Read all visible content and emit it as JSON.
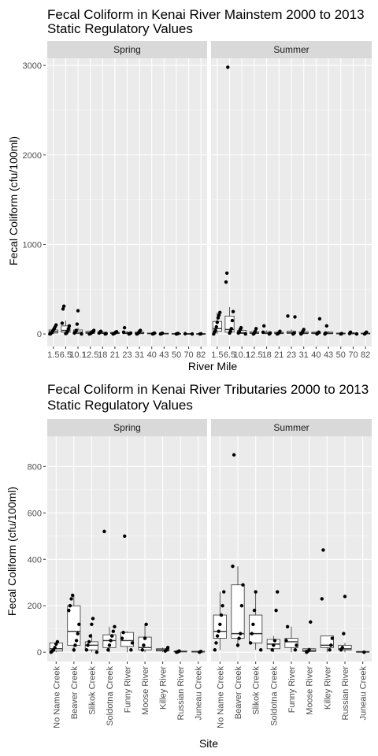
{
  "chart_data": [
    {
      "type": "box",
      "title_line1": "Fecal Coliform in Kenai River Mainstem  2000 to 2013",
      "title_line2": "Static Regulatory Values",
      "xlabel": "River Mile",
      "ylabel": "Fecal Coliform (cfu/100ml)",
      "ylim": [
        -140,
        3080
      ],
      "yticks": [
        0,
        1000,
        2000,
        3000
      ],
      "panels": [
        "Spring",
        "Summer"
      ],
      "categories": [
        "1.5",
        "6.5",
        "10.1",
        "12.5",
        "18",
        "21",
        "23",
        "31",
        "40",
        "43",
        "50",
        "70",
        "82"
      ],
      "tick_labels": [
        "1.5",
        "6.5",
        "10.1",
        "12.5",
        "18",
        "21",
        "23",
        "31",
        "40",
        "43",
        "50",
        "70",
        "82"
      ],
      "series": [
        {
          "name": "Spring",
          "boxes": [
            {
              "q1": 10,
              "median": 25,
              "q3": 45,
              "lo": 0,
              "hi": 80,
              "points": [
                0,
                5,
                15,
                30,
                45,
                60,
                80,
                100
              ]
            },
            {
              "q1": 20,
              "median": 40,
              "q3": 90,
              "lo": 0,
              "hi": 150,
              "points": [
                5,
                10,
                30,
                60,
                90,
                120,
                280,
                310
              ]
            },
            {
              "q1": 5,
              "median": 20,
              "q3": 45,
              "lo": 0,
              "hi": 70,
              "points": [
                0,
                10,
                20,
                40,
                110,
                260
              ]
            },
            {
              "q1": 5,
              "median": 15,
              "q3": 30,
              "lo": 0,
              "hi": 40,
              "points": [
                0,
                5,
                10,
                20,
                30,
                40
              ]
            },
            {
              "q1": 5,
              "median": 10,
              "q3": 20,
              "lo": 0,
              "hi": 30,
              "points": [
                0,
                5,
                10,
                20,
                30
              ]
            },
            {
              "q1": 3,
              "median": 8,
              "q3": 18,
              "lo": 0,
              "hi": 25,
              "points": [
                0,
                5,
                10,
                20,
                25
              ]
            },
            {
              "q1": 3,
              "median": 10,
              "q3": 20,
              "lo": 0,
              "hi": 30,
              "points": [
                0,
                5,
                10,
                20,
                70
              ]
            },
            {
              "q1": 3,
              "median": 10,
              "q3": 20,
              "lo": 0,
              "hi": 30,
              "points": [
                0,
                5,
                15,
                30,
                40
              ]
            },
            {
              "q1": 2,
              "median": 5,
              "q3": 10,
              "lo": 0,
              "hi": 15,
              "points": [
                0,
                5,
                10
              ]
            },
            {
              "q1": 2,
              "median": 4,
              "q3": 8,
              "lo": 0,
              "hi": 10,
              "points": [
                0,
                3,
                8
              ]
            },
            {
              "q1": 1,
              "median": 3,
              "q3": 6,
              "lo": 0,
              "hi": 8,
              "points": [
                0,
                3,
                6
              ]
            },
            {
              "q1": 1,
              "median": 3,
              "q3": 5,
              "lo": 0,
              "hi": 8,
              "points": [
                0,
                3
              ]
            },
            {
              "q1": 1,
              "median": 2,
              "q3": 4,
              "lo": 0,
              "hi": 6,
              "points": [
                0,
                2
              ]
            }
          ]
        },
        {
          "name": "Summer",
          "boxes": [
            {
              "q1": 30,
              "median": 60,
              "q3": 140,
              "lo": 0,
              "hi": 240,
              "points": [
                0,
                20,
                40,
                80,
                130,
                180,
                210,
                240
              ]
            },
            {
              "q1": 20,
              "median": 50,
              "q3": 200,
              "lo": 0,
              "hi": 300,
              "points": [
                10,
                30,
                60,
                150,
                250,
                580,
                680,
                2980
              ]
            },
            {
              "q1": 5,
              "median": 15,
              "q3": 40,
              "lo": 0,
              "hi": 60,
              "points": [
                0,
                10,
                20,
                50,
                70
              ]
            },
            {
              "q1": 5,
              "median": 10,
              "q3": 25,
              "lo": 0,
              "hi": 40,
              "points": [
                0,
                10,
                30,
                60
              ]
            },
            {
              "q1": 3,
              "median": 10,
              "q3": 25,
              "lo": 0,
              "hi": 40,
              "points": [
                0,
                10,
                20,
                90
              ]
            },
            {
              "q1": 3,
              "median": 8,
              "q3": 20,
              "lo": 0,
              "hi": 30,
              "points": [
                0,
                5,
                15,
                30
              ]
            },
            {
              "q1": 5,
              "median": 15,
              "q3": 30,
              "lo": 0,
              "hi": 50,
              "points": [
                0,
                10,
                190,
                200
              ]
            },
            {
              "q1": 3,
              "median": 10,
              "q3": 25,
              "lo": 0,
              "hi": 40,
              "points": [
                0,
                10,
                30,
                50
              ]
            },
            {
              "q1": 3,
              "median": 10,
              "q3": 20,
              "lo": 0,
              "hi": 30,
              "points": [
                0,
                10,
                20,
                170
              ]
            },
            {
              "q1": 2,
              "median": 8,
              "q3": 20,
              "lo": 0,
              "hi": 30,
              "points": [
                0,
                10,
                90
              ]
            },
            {
              "q1": 1,
              "median": 4,
              "q3": 10,
              "lo": 0,
              "hi": 15,
              "points": [
                0,
                5
              ]
            },
            {
              "q1": 1,
              "median": 5,
              "q3": 12,
              "lo": 0,
              "hi": 20,
              "points": [
                0,
                5,
                20
              ]
            },
            {
              "q1": 1,
              "median": 4,
              "q3": 10,
              "lo": 0,
              "hi": 15,
              "points": [
                0,
                10,
                20
              ]
            }
          ]
        }
      ]
    },
    {
      "type": "box",
      "title_line1": "Fecal Coliform in Kenai River Tributaries  2000 to 2013",
      "title_line2": "Static Regulatory Values",
      "xlabel": "Site",
      "ylabel": "Fecal Coliform (cfu/100ml)",
      "ylim": [
        -40,
        930
      ],
      "yticks": [
        0,
        200,
        400,
        600,
        800
      ],
      "panels": [
        "Spring",
        "Summer"
      ],
      "categories": [
        "No Name Creek",
        "Beaver Creek",
        "Slikok Creek",
        "Soldotna Creek",
        "Funny River",
        "Moose River",
        "Killey River",
        "Russian River",
        "Juneau Creek"
      ],
      "series": [
        {
          "name": "Spring",
          "boxes": [
            {
              "q1": 5,
              "median": 15,
              "q3": 40,
              "lo": 0,
              "hi": 45,
              "points": [
                0,
                5,
                10,
                20,
                35,
                45
              ]
            },
            {
              "q1": 30,
              "median": 90,
              "q3": 200,
              "lo": 0,
              "hi": 245,
              "points": [
                10,
                30,
                50,
                80,
                120,
                180,
                200,
                230,
                245
              ]
            },
            {
              "q1": 10,
              "median": 30,
              "q3": 45,
              "lo": 0,
              "hi": 80,
              "points": [
                0,
                10,
                30,
                45,
                70,
                120,
                145
              ]
            },
            {
              "q1": 20,
              "median": 50,
              "q3": 75,
              "lo": 0,
              "hi": 110,
              "points": [
                10,
                30,
                50,
                70,
                90,
                110,
                520
              ]
            },
            {
              "q1": 25,
              "median": 50,
              "q3": 85,
              "lo": 0,
              "hi": 90,
              "points": [
                10,
                40,
                60,
                85,
                500
              ]
            },
            {
              "q1": 10,
              "median": 20,
              "q3": 65,
              "lo": 0,
              "hi": 120,
              "points": [
                10,
                30,
                60,
                120
              ]
            },
            {
              "q1": 5,
              "median": 10,
              "q3": 15,
              "lo": 0,
              "hi": 20,
              "points": [
                5,
                10,
                20
              ]
            },
            {
              "q1": 1,
              "median": 3,
              "q3": 5,
              "lo": 0,
              "hi": 8,
              "points": [
                0,
                2,
                5
              ]
            },
            {
              "q1": 1,
              "median": 2,
              "q3": 4,
              "lo": 0,
              "hi": 5,
              "points": [
                0,
                3
              ]
            }
          ]
        },
        {
          "name": "Summer",
          "boxes": [
            {
              "q1": 60,
              "median": 90,
              "q3": 160,
              "lo": 10,
              "hi": 260,
              "points": [
                10,
                40,
                70,
                90,
                120,
                160,
                200,
                260
              ]
            },
            {
              "q1": 60,
              "median": 80,
              "q3": 290,
              "lo": 20,
              "hi": 370,
              "points": [
                30,
                60,
                80,
                200,
                290,
                370,
                850
              ]
            },
            {
              "q1": 40,
              "median": 80,
              "q3": 160,
              "lo": 10,
              "hi": 260,
              "points": [
                10,
                40,
                80,
                120,
                180,
                260
              ]
            },
            {
              "q1": 15,
              "median": 35,
              "q3": 55,
              "lo": 0,
              "hi": 70,
              "points": [
                10,
                30,
                50,
                180,
                260
              ]
            },
            {
              "q1": 20,
              "median": 45,
              "q3": 60,
              "lo": 0,
              "hi": 110,
              "points": [
                10,
                30,
                50,
                110
              ]
            },
            {
              "q1": 3,
              "median": 8,
              "q3": 15,
              "lo": 0,
              "hi": 20,
              "points": [
                0,
                5,
                10,
                130
              ]
            },
            {
              "q1": 20,
              "median": 30,
              "q3": 70,
              "lo": 0,
              "hi": 70,
              "points": [
                10,
                30,
                60,
                230,
                440
              ]
            },
            {
              "q1": 10,
              "median": 15,
              "q3": 30,
              "lo": 0,
              "hi": 40,
              "points": [
                10,
                20,
                80,
                240
              ]
            },
            {
              "q1": 1,
              "median": 2,
              "q3": 3,
              "lo": 0,
              "hi": 4,
              "points": [
                0
              ]
            }
          ]
        }
      ]
    }
  ]
}
